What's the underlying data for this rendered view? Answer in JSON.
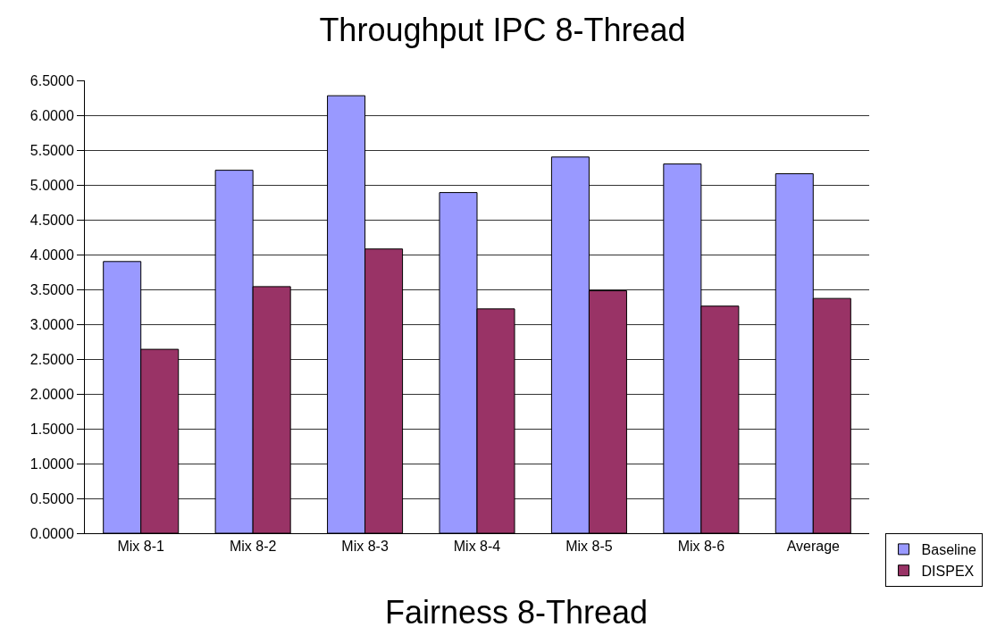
{
  "chart_data": {
    "type": "bar",
    "title": "Throughput IPC 8-Thread",
    "categories": [
      "Mix 8-1",
      "Mix 8-2",
      "Mix 8-3",
      "Mix 8-4",
      "Mix 8-5",
      "Mix 8-6",
      "Average"
    ],
    "series": [
      {
        "name": "Baseline",
        "color": "#9999ff",
        "values": [
          3.9,
          5.21,
          6.28,
          4.89,
          5.4,
          5.3,
          5.16
        ]
      },
      {
        "name": "DISPEX",
        "color": "#993366",
        "values": [
          2.64,
          3.54,
          4.08,
          3.22,
          3.48,
          3.26,
          3.37
        ]
      }
    ],
    "ylim": [
      0,
      6.5
    ],
    "yticks": [
      {
        "value": 0,
        "label": "0.0000"
      },
      {
        "value": 0.5,
        "label": "0.5000"
      },
      {
        "value": 1,
        "label": "1.0000"
      },
      {
        "value": 1.5,
        "label": "1.5000"
      },
      {
        "value": 2,
        "label": "2.0000"
      },
      {
        "value": 2.5,
        "label": "2.5000"
      },
      {
        "value": 3,
        "label": "3.0000"
      },
      {
        "value": 3.5,
        "label": "3.5000"
      },
      {
        "value": 4,
        "label": "4.0000"
      },
      {
        "value": 4.5,
        "label": "4.5000"
      },
      {
        "value": 5,
        "label": "5.0000"
      },
      {
        "value": 5.5,
        "label": "5.5000"
      },
      {
        "value": 6,
        "label": "6.0000"
      },
      {
        "value": 6.5,
        "label": "6.5000"
      }
    ],
    "grid": "y",
    "legend": "bottom right",
    "annotations": [
      "Fairness 8-Thread"
    ]
  }
}
